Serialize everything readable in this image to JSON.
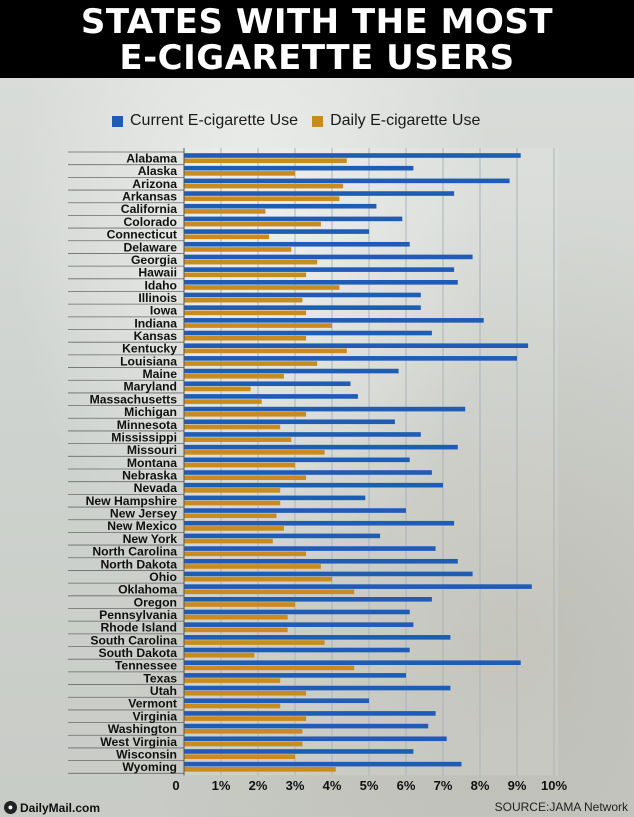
{
  "header": {
    "title_line1": "STATES WITH THE MOST",
    "title_line2": "E-CIGARETTE USERS"
  },
  "footer": {
    "logo_text": "DailyMail.com",
    "source": "SOURCE:JAMA Network"
  },
  "colors": {
    "current": "#1f5cb5",
    "daily": "#c98a1e"
  },
  "chart_data": {
    "type": "bar",
    "orientation": "horizontal",
    "title": "STATES WITH THE MOST E-CIGARETTE USERS",
    "legend_position": "top",
    "grid": true,
    "xlim": [
      0,
      10
    ],
    "x_tick_values": [
      0,
      1,
      2,
      3,
      4,
      5,
      6,
      7,
      8,
      9,
      10
    ],
    "x_tick_labels": [
      "0",
      "1%",
      "2%",
      "3%",
      "4%",
      "5%",
      "6%",
      "7%",
      "8%",
      "9%",
      "10%"
    ],
    "categories": [
      "Alabama",
      "Alaska",
      "Arizona",
      "Arkansas",
      "California",
      "Colorado",
      "Connecticut",
      "Delaware",
      "Georgia",
      "Hawaii",
      "Idaho",
      "Illinois",
      "Iowa",
      "Indiana",
      "Kansas",
      "Kentucky",
      "Louisiana",
      "Maine",
      "Maryland",
      "Massachusetts",
      "Michigan",
      "Minnesota",
      "Mississippi",
      "Missouri",
      "Montana",
      "Nebraska",
      "Nevada",
      "New Hampshire",
      "New Jersey",
      "New Mexico",
      "New York",
      "North Carolina",
      "North Dakota",
      "Ohio",
      "Oklahoma",
      "Oregon",
      "Pennsylvania",
      "Rhode Island",
      "South Carolina",
      "South Dakota",
      "Tennessee",
      "Texas",
      "Utah",
      "Vermont",
      "Virginia",
      "Washington",
      "West Virginia",
      "Wisconsin",
      "Wyoming"
    ],
    "series": [
      {
        "name": "Current E-cigarette Use",
        "values": [
          9.1,
          6.2,
          8.8,
          7.3,
          5.2,
          5.9,
          5.0,
          6.1,
          7.8,
          7.3,
          7.4,
          6.4,
          6.4,
          8.1,
          6.7,
          9.3,
          9.0,
          5.8,
          4.5,
          4.7,
          7.6,
          5.7,
          6.4,
          7.4,
          6.1,
          6.7,
          7.0,
          4.9,
          6.0,
          7.3,
          5.3,
          6.8,
          7.4,
          7.8,
          9.4,
          6.7,
          6.1,
          6.2,
          7.2,
          6.1,
          9.1,
          6.0,
          7.2,
          5.0,
          6.8,
          6.6,
          7.1,
          6.2,
          7.5
        ]
      },
      {
        "name": "Daily E-cigarette Use",
        "values": [
          4.4,
          3.0,
          4.3,
          4.2,
          2.2,
          3.7,
          2.3,
          2.9,
          3.6,
          3.3,
          4.2,
          3.2,
          3.3,
          4.0,
          3.3,
          4.4,
          3.6,
          2.7,
          1.8,
          2.1,
          3.3,
          2.6,
          2.9,
          3.8,
          3.0,
          3.3,
          2.6,
          2.6,
          2.5,
          2.7,
          2.4,
          3.3,
          3.7,
          4.0,
          4.6,
          3.0,
          2.8,
          2.8,
          3.8,
          1.9,
          4.6,
          2.6,
          3.3,
          2.6,
          3.3,
          3.2,
          3.2,
          3.0,
          4.1
        ]
      }
    ]
  }
}
